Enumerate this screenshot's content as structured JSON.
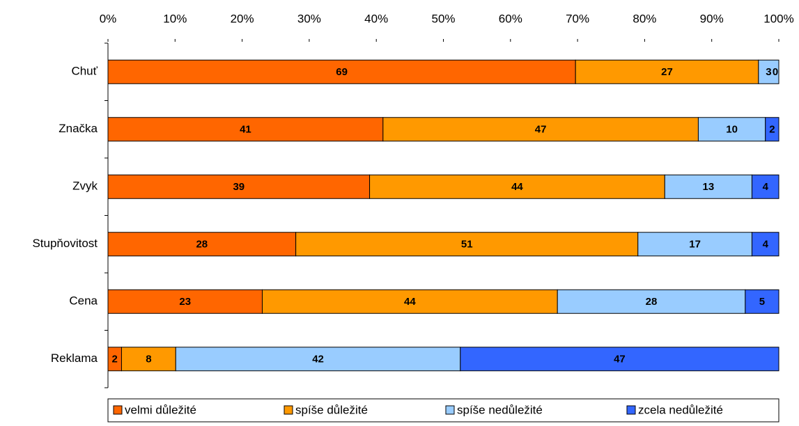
{
  "chart_data": {
    "type": "percent-stacked-bar",
    "categories": [
      "Chuť",
      "Značka",
      "Zvyk",
      "Stupňovitost",
      "Cena",
      "Reklama"
    ],
    "series": [
      {
        "name": "velmi důležité",
        "color": "#ff6600",
        "values": [
          69,
          41,
          39,
          28,
          23,
          2
        ]
      },
      {
        "name": "spíše důležité",
        "color": "#ff9900",
        "values": [
          27,
          47,
          44,
          51,
          44,
          8
        ]
      },
      {
        "name": "spíše nedůležité",
        "color": "#99ccff",
        "values": [
          3,
          10,
          13,
          17,
          28,
          42
        ]
      },
      {
        "name": "zcela nedůležité",
        "color": "#3366ff",
        "values": [
          0,
          2,
          4,
          4,
          5,
          47
        ]
      }
    ],
    "xlim": [
      0,
      100
    ],
    "xticks": [
      {
        "value": 0,
        "label": "0%"
      },
      {
        "value": 10,
        "label": "10%"
      },
      {
        "value": 20,
        "label": "20%"
      },
      {
        "value": 30,
        "label": "30%"
      },
      {
        "value": 40,
        "label": "40%"
      },
      {
        "value": 50,
        "label": "50%"
      },
      {
        "value": 60,
        "label": "60%"
      },
      {
        "value": 70,
        "label": "70%"
      },
      {
        "value": 80,
        "label": "80%"
      },
      {
        "value": 90,
        "label": "90%"
      },
      {
        "value": 100,
        "label": "100%"
      }
    ],
    "legend": "bottom"
  }
}
